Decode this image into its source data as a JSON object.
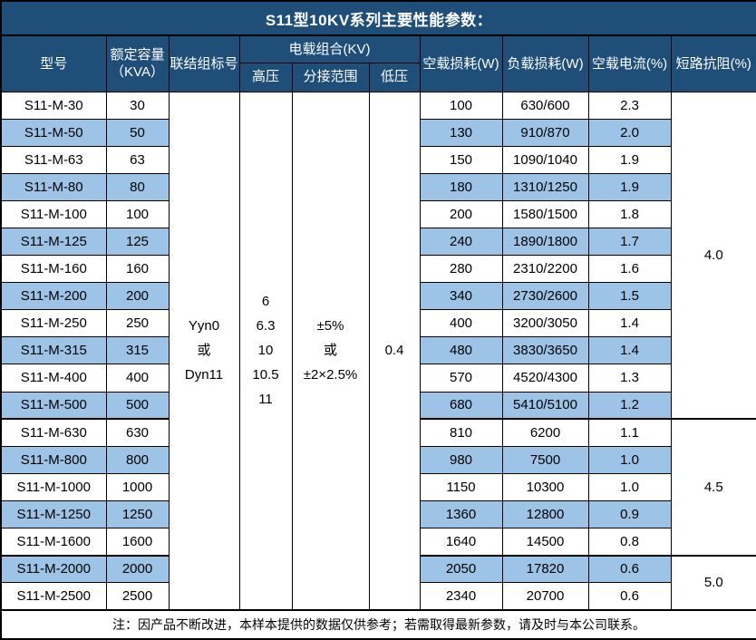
{
  "title": "S11型10KV系列主要性能参数：",
  "note": "注：因产品不断改进，本样本提供的数据仅供参考；若需取得最新参数，请及时与本公司联系。",
  "colors": {
    "header_bg": "#1F4E79",
    "header_text": "#FFFFFF",
    "row_alt_bg": "#9DC3E6",
    "row_bg": "#FFFFFF",
    "border": "#000000",
    "text": "#000000"
  },
  "header": {
    "model": "型号",
    "capacity": "额定容量\n（KVA）",
    "connection": "联结组标号",
    "load_combo": "电载组合(KV)",
    "hv": "高压",
    "tap_range": "分接范围",
    "lv": "低压",
    "no_load_loss": "空载损耗(W)",
    "load_loss": "负载损耗(W)",
    "no_load_current": "空载电流(%)",
    "short_impedance": "短路抗阻(%)"
  },
  "table": {
    "merged": {
      "connection_lines": [
        "Yyn0",
        "或",
        "Dyn11"
      ],
      "hv_lines": [
        "6",
        "6.3",
        "10",
        "10.5",
        "11"
      ],
      "tap_lines": [
        "±5%",
        "或",
        "±2×2.5%"
      ],
      "lv_value": "0.4"
    },
    "impedance_groups": [
      {
        "value": "4.0",
        "span": 12
      },
      {
        "value": "4.5",
        "span": 5
      },
      {
        "value": "5.0",
        "span": 2
      }
    ],
    "rows": [
      {
        "model": "S11-M-30",
        "capacity": "30",
        "no_load_loss": "100",
        "load_loss": "630/600",
        "no_load_current": "2.3"
      },
      {
        "model": "S11-M-50",
        "capacity": "50",
        "no_load_loss": "130",
        "load_loss": "910/870",
        "no_load_current": "2.0"
      },
      {
        "model": "S11-M-63",
        "capacity": "63",
        "no_load_loss": "150",
        "load_loss": "1090/1040",
        "no_load_current": "1.9"
      },
      {
        "model": "S11-M-80",
        "capacity": "80",
        "no_load_loss": "180",
        "load_loss": "1310/1250",
        "no_load_current": "1.9"
      },
      {
        "model": "S11-M-100",
        "capacity": "100",
        "no_load_loss": "200",
        "load_loss": "1580/1500",
        "no_load_current": "1.8"
      },
      {
        "model": "S11-M-125",
        "capacity": "125",
        "no_load_loss": "240",
        "load_loss": "1890/1800",
        "no_load_current": "1.7"
      },
      {
        "model": "S11-M-160",
        "capacity": "160",
        "no_load_loss": "280",
        "load_loss": "2310/2200",
        "no_load_current": "1.6"
      },
      {
        "model": "S11-M-200",
        "capacity": "200",
        "no_load_loss": "340",
        "load_loss": "2730/2600",
        "no_load_current": "1.5"
      },
      {
        "model": "S11-M-250",
        "capacity": "250",
        "no_load_loss": "400",
        "load_loss": "3200/3050",
        "no_load_current": "1.4"
      },
      {
        "model": "S11-M-315",
        "capacity": "315",
        "no_load_loss": "480",
        "load_loss": "3830/3650",
        "no_load_current": "1.4"
      },
      {
        "model": "S11-M-400",
        "capacity": "400",
        "no_load_loss": "570",
        "load_loss": "4520/4300",
        "no_load_current": "1.3"
      },
      {
        "model": "S11-M-500",
        "capacity": "500",
        "no_load_loss": "680",
        "load_loss": "5410/5100",
        "no_load_current": "1.2"
      },
      {
        "model": "S11-M-630",
        "capacity": "630",
        "no_load_loss": "810",
        "load_loss": "6200",
        "no_load_current": "1.1"
      },
      {
        "model": "S11-M-800",
        "capacity": "800",
        "no_load_loss": "980",
        "load_loss": "7500",
        "no_load_current": "1.0"
      },
      {
        "model": "S11-M-1000",
        "capacity": "1000",
        "no_load_loss": "1150",
        "load_loss": "10300",
        "no_load_current": "1.0"
      },
      {
        "model": "S11-M-1250",
        "capacity": "1250",
        "no_load_loss": "1360",
        "load_loss": "12800",
        "no_load_current": "0.9"
      },
      {
        "model": "S11-M-1600",
        "capacity": "1600",
        "no_load_loss": "1640",
        "load_loss": "14500",
        "no_load_current": "0.8"
      },
      {
        "model": "S11-M-2000",
        "capacity": "2000",
        "no_load_loss": "2050",
        "load_loss": "17820",
        "no_load_current": "0.6"
      },
      {
        "model": "S11-M-2500",
        "capacity": "2500",
        "no_load_loss": "2340",
        "load_loss": "20700",
        "no_load_current": "0.6"
      }
    ]
  }
}
